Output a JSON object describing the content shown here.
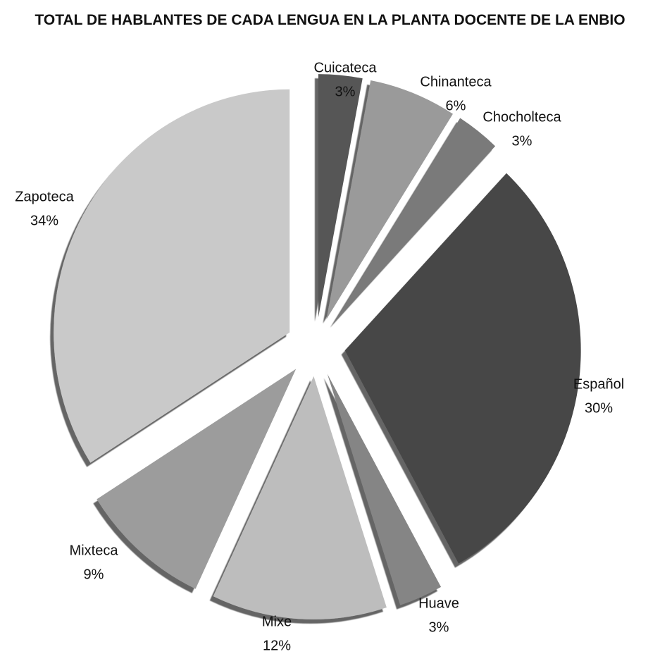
{
  "chart_data": {
    "type": "pie",
    "title": "TOTAL DE HABLANTES DE CADA LENGUA EN LA PLANTA DOCENTE DE LA ENBIO",
    "categories": [
      "Cuicateca",
      "Chinanteca",
      "Chocholteca",
      "Español",
      "Huave",
      "Mixe",
      "Mixteca",
      "Zapoteca"
    ],
    "values": [
      3,
      6,
      3,
      30,
      3,
      12,
      9,
      34
    ],
    "value_labels": [
      "3%",
      "6%",
      "3%",
      "30%",
      "3%",
      "12%",
      "9%",
      "34%"
    ],
    "colors": [
      "#575757",
      "#9a9a9a",
      "#7a7a7a",
      "#474747",
      "#858585",
      "#bdbdbd",
      "#9c9c9c",
      "#c9c9c9"
    ]
  }
}
